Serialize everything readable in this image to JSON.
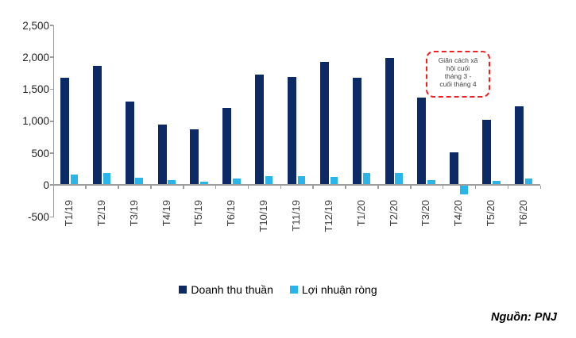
{
  "chart_data": {
    "type": "bar",
    "categories": [
      "T1/19",
      "T2/19",
      "T3/19",
      "T4/19",
      "T5/19",
      "T6/19",
      "T10/19",
      "T11/19",
      "T12/19",
      "T1/20",
      "T2/20",
      "T3/20",
      "T4/20",
      "T5/20",
      "T6/20"
    ],
    "series": [
      {
        "name": "Doanh thu thuần",
        "color": "#0c2a66",
        "values": [
          1660,
          1845,
          1290,
          935,
          855,
          1190,
          1720,
          1680,
          1910,
          1670,
          1975,
          1355,
          500,
          1010,
          1220
        ]
      },
      {
        "name": "Lợi nhuận ròng",
        "color": "#29b4ea",
        "values": [
          150,
          180,
          100,
          60,
          40,
          85,
          130,
          130,
          115,
          170,
          175,
          65,
          -140,
          45,
          85
        ]
      }
    ],
    "title": "",
    "xlabel": "",
    "ylabel": "",
    "ylim": [
      -500,
      2500
    ],
    "ytick_interval": 500,
    "ytick_labels": [
      "2,500",
      "2,000",
      "1,500",
      "1,000",
      "500",
      "0",
      "-500"
    ],
    "grid": false,
    "legend_position": "bottom-center",
    "annotation": {
      "text": "Giãn cách xã\nhội cuối\ntháng 3 -\ncuối tháng 4",
      "border_color": "#f22020",
      "text_color": "#3f3f3f"
    },
    "source": "Nguồn: PNJ",
    "axis_color": "#9e9e9e"
  }
}
